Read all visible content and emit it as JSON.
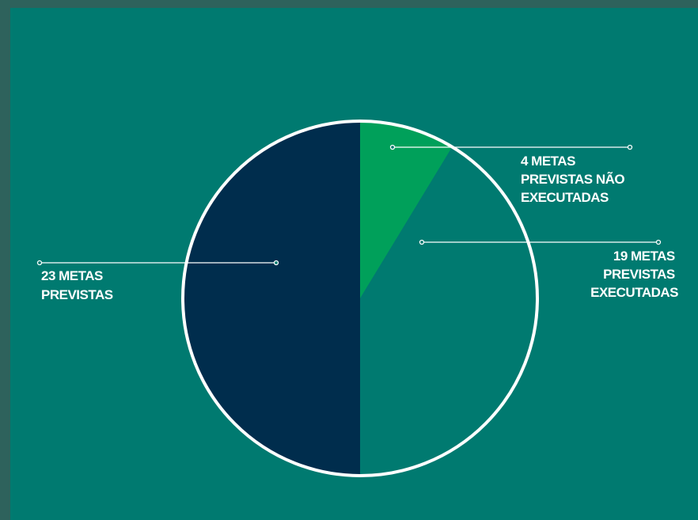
{
  "chart_data": {
    "type": "pie",
    "title": "",
    "slices": [
      {
        "label_lines": [
          "23 METAS",
          "PREVISTAS"
        ],
        "value": 23,
        "color": "#002d4d"
      },
      {
        "label_lines": [
          "4 METAS",
          "PREVISTAS NÃO",
          "EXECUTADAS"
        ],
        "value": 4,
        "color": "#00a05a"
      },
      {
        "label_lines": [
          "19 METAS",
          "PREVISTAS",
          "EXECUTADAS"
        ],
        "value": 19,
        "color": "#007a70"
      }
    ],
    "outline_color": "#ffffff",
    "legend": "none"
  },
  "colors": {
    "background": "#007a70",
    "outer_frame": "#2e625c",
    "label_text": "#ffffff"
  }
}
